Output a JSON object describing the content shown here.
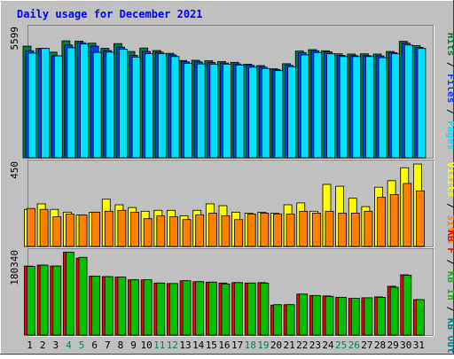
{
  "title": "Daily usage for December 2021",
  "colors": {
    "background": "#c0c0c0",
    "title": "#0000ff",
    "hits": "#008040",
    "files": "#0040ff",
    "pages": "#00e0ff",
    "visits": "#ffff00",
    "sites": "#ff8000",
    "kb_in": "#00c000",
    "kb_out": "#008080",
    "kb_f": "#ff0000",
    "weekend_day": "#00805c",
    "weekday_day": "#000000"
  },
  "chart_data": [
    {
      "type": "bar",
      "panel": "hits",
      "ymax_label": "5599",
      "legend": [
        {
          "text": "Hits",
          "color_key": "hits"
        },
        {
          "text": "Files",
          "color_key": "files"
        },
        {
          "text": "Pages",
          "color_key": "pages"
        }
      ],
      "categories": [
        "1",
        "2",
        "3",
        "4",
        "5",
        "6",
        "7",
        "8",
        "9",
        "10",
        "11",
        "12",
        "13",
        "14",
        "15",
        "16",
        "17",
        "18",
        "19",
        "20",
        "21",
        "22",
        "23",
        "24",
        "25",
        "26",
        "27",
        "28",
        "29",
        "30",
        "31"
      ],
      "ylim": [
        0,
        5600
      ],
      "series": [
        {
          "name": "Hits",
          "color_key": "hits",
          "values": [
            4830,
            4730,
            4570,
            5060,
            5050,
            4960,
            4740,
            4940,
            4600,
            4750,
            4640,
            4520,
            4210,
            4220,
            4200,
            4160,
            4130,
            4050,
            3990,
            3850,
            4070,
            4620,
            4680,
            4630,
            4500,
            4490,
            4500,
            4490,
            4600,
            5040,
            4850
          ]
        },
        {
          "name": "Files",
          "color_key": "files",
          "values": [
            4630,
            4730,
            4410,
            4880,
            4980,
            4830,
            4640,
            4790,
            4430,
            4600,
            4570,
            4450,
            4150,
            4150,
            4120,
            4100,
            4060,
            4000,
            3920,
            3820,
            4000,
            4550,
            4630,
            4580,
            4430,
            4420,
            4420,
            4410,
            4550,
            4960,
            4780
          ]
        },
        {
          "name": "Pages",
          "color_key": "pages",
          "values": [
            4530,
            4730,
            4410,
            4760,
            4920,
            4560,
            4570,
            4700,
            4360,
            4500,
            4500,
            4380,
            4080,
            4060,
            4050,
            4050,
            4010,
            3920,
            3860,
            3770,
            3940,
            4450,
            4550,
            4500,
            4380,
            4380,
            4380,
            4330,
            4500,
            4880,
            4730
          ]
        }
      ]
    },
    {
      "type": "bar",
      "panel": "visits",
      "ymax_label": "450",
      "legend": [
        {
          "text": "Visits",
          "color_key": "visits"
        },
        {
          "text": "Sites",
          "color_key": "sites"
        }
      ],
      "categories": [
        "1",
        "2",
        "3",
        "4",
        "5",
        "6",
        "7",
        "8",
        "9",
        "10",
        "11",
        "12",
        "13",
        "14",
        "15",
        "16",
        "17",
        "18",
        "19",
        "20",
        "21",
        "22",
        "23",
        "24",
        "25",
        "26",
        "27",
        "28",
        "29",
        "30",
        "31"
      ],
      "ylim": [
        0,
        450
      ],
      "series": [
        {
          "name": "Visits",
          "color_key": "visits",
          "values": [
            200,
            230,
            200,
            185,
            170,
            185,
            255,
            225,
            210,
            190,
            195,
            195,
            165,
            195,
            230,
            220,
            185,
            180,
            185,
            180,
            225,
            235,
            190,
            335,
            325,
            260,
            215,
            320,
            355,
            425,
            445
          ]
        },
        {
          "name": "Sites",
          "color_key": "sites",
          "values": [
            205,
            200,
            160,
            175,
            170,
            185,
            190,
            195,
            185,
            150,
            165,
            160,
            145,
            170,
            180,
            165,
            145,
            175,
            180,
            175,
            175,
            190,
            180,
            190,
            180,
            180,
            190,
            265,
            280,
            340,
            300
          ]
        }
      ]
    },
    {
      "type": "bar",
      "panel": "kbytes",
      "ymax_label": "180340",
      "legend": [
        {
          "text": "KB F",
          "color_key": "kb_f"
        },
        {
          "text": "KB In",
          "color_key": "kb_in"
        },
        {
          "text": "KB Out",
          "color_key": "kb_out"
        }
      ],
      "categories": [
        "1",
        "2",
        "3",
        "4",
        "5",
        "6",
        "7",
        "8",
        "9",
        "10",
        "11",
        "12",
        "13",
        "14",
        "15",
        "16",
        "17",
        "18",
        "19",
        "20",
        "21",
        "22",
        "23",
        "24",
        "25",
        "26",
        "27",
        "28",
        "29",
        "30",
        "31"
      ],
      "ylim": [
        0,
        181000
      ],
      "series": [
        {
          "name": "KB F",
          "color_key": "kb_f",
          "values": [
            150000,
            152000,
            150000,
            180000,
            167000,
            128000,
            127000,
            126000,
            120000,
            120000,
            113000,
            112000,
            118000,
            116000,
            115000,
            113000,
            114000,
            113000,
            114000,
            65000,
            66000,
            89000,
            86000,
            85000,
            82000,
            80000,
            81000,
            83000,
            106000,
            131000,
            77000
          ]
        },
        {
          "name": "KB In",
          "color_key": "kb_in",
          "values": [
            149000,
            152000,
            150000,
            180000,
            169000,
            128000,
            127000,
            126000,
            120000,
            120000,
            113000,
            112000,
            118000,
            116000,
            115000,
            111000,
            114000,
            113000,
            113000,
            66000,
            66000,
            89000,
            86000,
            84000,
            82000,
            80000,
            81000,
            82000,
            104000,
            130000,
            77000
          ]
        }
      ]
    }
  ],
  "day_labels": [
    {
      "text": "1",
      "weekend": false
    },
    {
      "text": "2",
      "weekend": false
    },
    {
      "text": "3",
      "weekend": false
    },
    {
      "text": "4",
      "weekend": true
    },
    {
      "text": "5",
      "weekend": true
    },
    {
      "text": "6",
      "weekend": false
    },
    {
      "text": "7",
      "weekend": false
    },
    {
      "text": "8",
      "weekend": false
    },
    {
      "text": "9",
      "weekend": false
    },
    {
      "text": "10",
      "weekend": false
    },
    {
      "text": "11",
      "weekend": true
    },
    {
      "text": "12",
      "weekend": true
    },
    {
      "text": "13",
      "weekend": false
    },
    {
      "text": "14",
      "weekend": false
    },
    {
      "text": "15",
      "weekend": false
    },
    {
      "text": "16",
      "weekend": false
    },
    {
      "text": "17",
      "weekend": false
    },
    {
      "text": "18",
      "weekend": true
    },
    {
      "text": "19",
      "weekend": true
    },
    {
      "text": "20",
      "weekend": false
    },
    {
      "text": "21",
      "weekend": false
    },
    {
      "text": "22",
      "weekend": false
    },
    {
      "text": "23",
      "weekend": false
    },
    {
      "text": "24",
      "weekend": false
    },
    {
      "text": "25",
      "weekend": true
    },
    {
      "text": "26",
      "weekend": true
    },
    {
      "text": "27",
      "weekend": false
    },
    {
      "text": "28",
      "weekend": false
    },
    {
      "text": "29",
      "weekend": false
    },
    {
      "text": "30",
      "weekend": false
    },
    {
      "text": "31",
      "weekend": false
    }
  ]
}
